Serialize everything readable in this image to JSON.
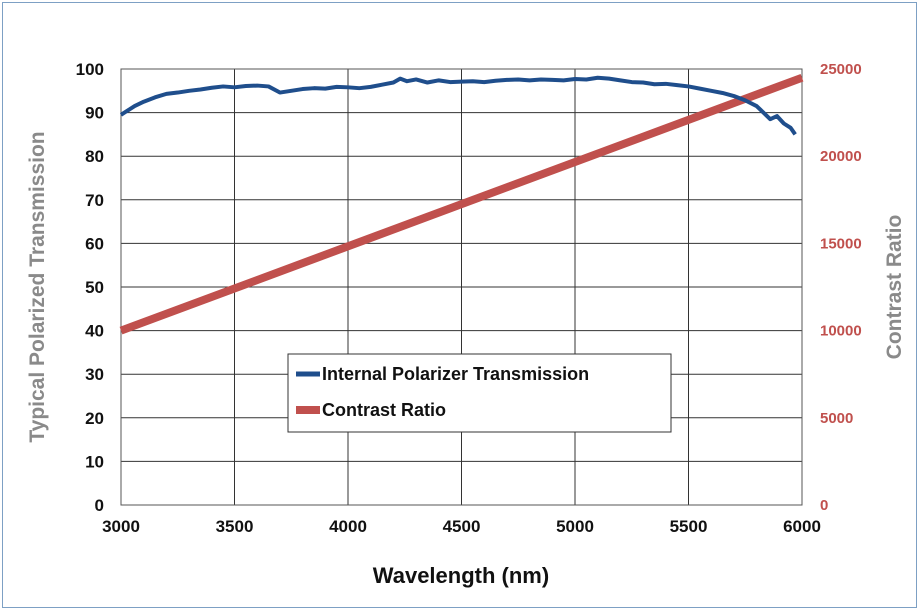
{
  "chart_data": {
    "type": "line",
    "xlabel": "Wavelength (nm)",
    "ylabel": "Typical Polarized Transmission",
    "y2label": "Contrast Ratio",
    "xlim": [
      3000,
      6000
    ],
    "ylim": [
      0,
      100
    ],
    "y2lim": [
      0,
      25000
    ],
    "x_ticks": [
      "3000",
      "3500",
      "4000",
      "4500",
      "5000",
      "5500",
      "6000"
    ],
    "y_ticks": [
      "0",
      "10",
      "20",
      "30",
      "40",
      "50",
      "60",
      "70",
      "80",
      "90",
      "100"
    ],
    "y2_ticks": [
      "0",
      "5000",
      "10000",
      "15000",
      "20000",
      "25000"
    ],
    "grid": true,
    "legend_position": "lower-center",
    "series": [
      {
        "name": "Internal Polarizer Transmission",
        "axis": "left",
        "color": "#1f4e8c",
        "x": [
          3000,
          3030,
          3060,
          3100,
          3150,
          3200,
          3250,
          3300,
          3350,
          3400,
          3450,
          3500,
          3550,
          3600,
          3650,
          3700,
          3750,
          3800,
          3850,
          3900,
          3950,
          4000,
          4050,
          4100,
          4150,
          4200,
          4230,
          4260,
          4300,
          4350,
          4400,
          4450,
          4500,
          4550,
          4600,
          4650,
          4700,
          4750,
          4800,
          4850,
          4900,
          4950,
          5000,
          5050,
          5100,
          5150,
          5200,
          5250,
          5300,
          5350,
          5400,
          5450,
          5500,
          5550,
          5600,
          5650,
          5700,
          5750,
          5800,
          5830,
          5860,
          5890,
          5920,
          5950,
          5970
        ],
        "values": [
          89.5,
          90.5,
          91.5,
          92.5,
          93.5,
          94.3,
          94.6,
          95.0,
          95.3,
          95.7,
          96.0,
          95.8,
          96.1,
          96.2,
          96.0,
          94.6,
          95.0,
          95.4,
          95.6,
          95.5,
          95.9,
          95.8,
          95.6,
          95.9,
          96.4,
          96.9,
          97.8,
          97.2,
          97.6,
          96.9,
          97.4,
          97.0,
          97.1,
          97.2,
          97.0,
          97.3,
          97.5,
          97.6,
          97.4,
          97.6,
          97.5,
          97.4,
          97.7,
          97.6,
          98.0,
          97.8,
          97.4,
          97.0,
          96.9,
          96.5,
          96.6,
          96.3,
          96.0,
          95.5,
          95.0,
          94.5,
          93.8,
          92.8,
          91.5,
          90.0,
          88.5,
          89.2,
          87.5,
          86.5,
          85.0
        ]
      },
      {
        "name": "Contrast Ratio",
        "axis": "right",
        "color": "#c0504d",
        "x": [
          3000,
          6000
        ],
        "values": [
          10000,
          24500
        ]
      }
    ]
  }
}
